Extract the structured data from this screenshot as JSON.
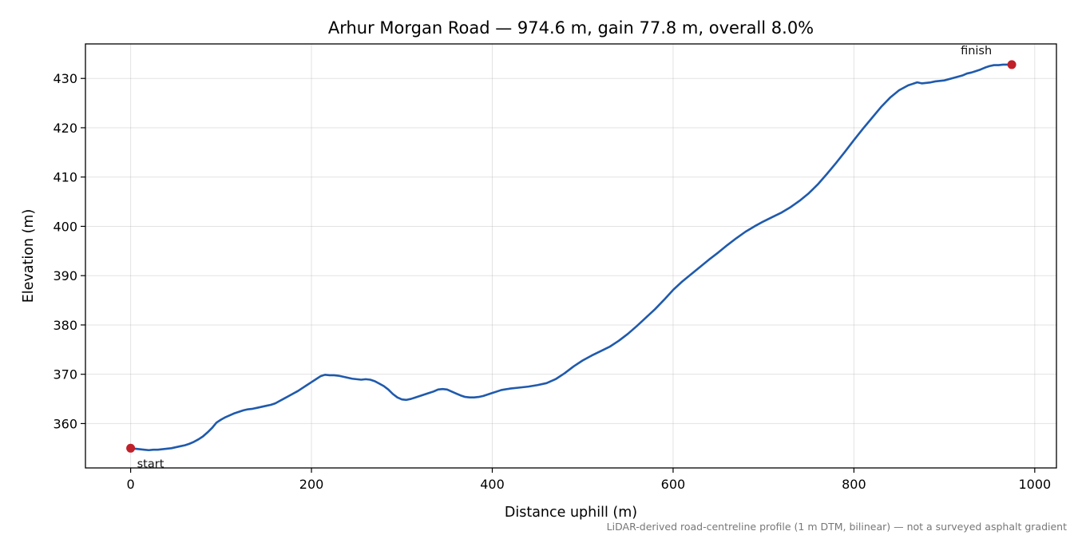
{
  "chart_data": {
    "type": "line",
    "title": "Arhur Morgan Road — 974.6 m, gain 77.8 m, overall 8.0%",
    "xlabel": "Distance uphill (m)",
    "ylabel": "Elevation (m)",
    "xlim": [
      -50,
      1024
    ],
    "ylim": [
      351,
      437
    ],
    "xticks": [
      0,
      200,
      400,
      600,
      800,
      1000
    ],
    "yticks": [
      360,
      370,
      380,
      390,
      400,
      410,
      420,
      430
    ],
    "grid": true,
    "colors": {
      "line": "#1f5aad",
      "marker": "#c0202a"
    },
    "series": [
      {
        "x": [
          0,
          5,
          10,
          15,
          20,
          25,
          30,
          35,
          40,
          45,
          50,
          55,
          60,
          65,
          70,
          75,
          80,
          85,
          90,
          95,
          100,
          105,
          110,
          115,
          120,
          125,
          130,
          135,
          140,
          145,
          150,
          155,
          160,
          165,
          170,
          175,
          180,
          185,
          190,
          195,
          200,
          205,
          210,
          215,
          220,
          225,
          230,
          235,
          240,
          245,
          250,
          255,
          260,
          265,
          270,
          275,
          280,
          285,
          290,
          295,
          300,
          305,
          310,
          315,
          320,
          325,
          330,
          335,
          340,
          345,
          350,
          355,
          360,
          365,
          370,
          375,
          380,
          385,
          390,
          395,
          400,
          405,
          410,
          420,
          430,
          440,
          450,
          460,
          470,
          480,
          490,
          500,
          510,
          520,
          530,
          540,
          550,
          560,
          570,
          580,
          590,
          600,
          610,
          620,
          630,
          640,
          650,
          660,
          670,
          680,
          690,
          700,
          710,
          720,
          730,
          740,
          750,
          760,
          770,
          780,
          790,
          800,
          810,
          820,
          830,
          840,
          850,
          860,
          870,
          875,
          880,
          885,
          890,
          900,
          910,
          920,
          925,
          930,
          935,
          940,
          945,
          950,
          955,
          960,
          965,
          970,
          974.6
        ],
        "y": [
          355.0,
          354.9,
          354.8,
          354.7,
          354.6,
          354.7,
          354.7,
          354.8,
          354.9,
          355.0,
          355.2,
          355.4,
          355.6,
          355.9,
          356.3,
          356.8,
          357.4,
          358.2,
          359.1,
          360.2,
          360.8,
          361.3,
          361.7,
          362.1,
          362.4,
          362.7,
          362.9,
          363.0,
          363.2,
          363.4,
          363.6,
          363.8,
          364.1,
          364.6,
          365.1,
          365.6,
          366.1,
          366.6,
          367.2,
          367.8,
          368.4,
          369.0,
          369.6,
          369.9,
          369.8,
          369.8,
          369.7,
          369.5,
          369.3,
          369.1,
          369.0,
          368.9,
          369.0,
          368.9,
          368.6,
          368.1,
          367.6,
          366.9,
          366.0,
          365.3,
          364.9,
          364.8,
          365.0,
          365.3,
          365.6,
          365.9,
          366.2,
          366.5,
          366.9,
          367.0,
          366.9,
          366.5,
          366.1,
          365.7,
          365.4,
          365.3,
          365.3,
          365.4,
          365.6,
          365.9,
          366.2,
          366.5,
          366.8,
          367.1,
          367.3,
          367.5,
          367.8,
          368.2,
          369.0,
          370.2,
          371.6,
          372.8,
          373.8,
          374.7,
          375.6,
          376.8,
          378.2,
          379.8,
          381.5,
          383.2,
          385.1,
          387.1,
          388.8,
          390.3,
          391.8,
          393.3,
          394.7,
          396.2,
          397.6,
          398.9,
          400.0,
          401.0,
          401.9,
          402.8,
          403.9,
          405.2,
          406.7,
          408.5,
          410.6,
          412.8,
          415.1,
          417.5,
          419.8,
          422.0,
          424.2,
          426.1,
          427.6,
          428.6,
          429.2,
          429.0,
          429.1,
          429.2,
          429.4,
          429.6,
          430.1,
          430.6,
          431.0,
          431.2,
          431.5,
          431.8,
          432.2,
          432.5,
          432.7,
          432.7,
          432.8,
          432.8,
          432.8
        ]
      }
    ],
    "annotations": [
      {
        "text": "start",
        "x": 0,
        "y": 355.0
      },
      {
        "text": "finish",
        "x": 974.6,
        "y": 432.8
      }
    ],
    "footnote": "LiDAR-derived road-centreline profile (1 m DTM, bilinear) — not a surveyed asphalt gradient"
  }
}
